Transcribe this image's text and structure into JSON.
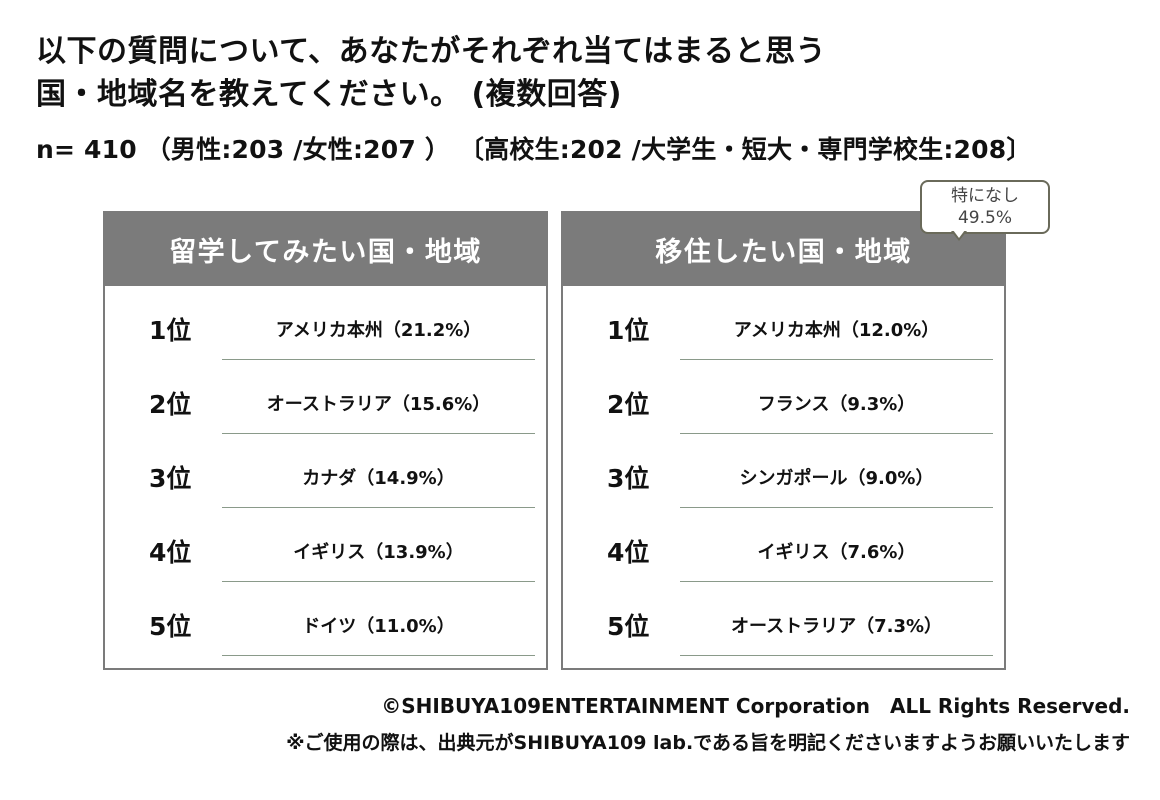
{
  "title_line1": "以下の質問について、あなたがそれぞれ当てはまると思う",
  "title_line2": "国・地域名を教えてください。 (複数回答)",
  "subtitle": "n= 410 （男性:203 /女性:207 ） 〔高校生:202 /大学生・短大・専門学校生:208〕",
  "left_panel": {
    "header": "留学してみたい国・地域",
    "rows": [
      {
        "rank": "1位",
        "item": "アメリカ本州（21.2%）"
      },
      {
        "rank": "2位",
        "item": "オーストラリア（15.6%）"
      },
      {
        "rank": "3位",
        "item": "カナダ（14.9%）"
      },
      {
        "rank": "4位",
        "item": "イギリス（13.9%）"
      },
      {
        "rank": "5位",
        "item": "ドイツ（11.0%）"
      }
    ]
  },
  "right_panel": {
    "header": "移住したい国・地域",
    "rows": [
      {
        "rank": "1位",
        "item": "アメリカ本州（12.0%）"
      },
      {
        "rank": "2位",
        "item": "フランス（9.3%）"
      },
      {
        "rank": "3位",
        "item": "シンガポール（9.0%）"
      },
      {
        "rank": "4位",
        "item": "イギリス（7.6%）"
      },
      {
        "rank": "5位",
        "item": "オーストラリア（7.3%）"
      }
    ]
  },
  "callout": {
    "line1": "特になし",
    "line2": "49.5%"
  },
  "footer": {
    "copyright": "©SHIBUYA109ENTERTAINMENT Corporation　ALL Rights Reserved.",
    "notice": "※ご使用の際は、出典元がSHIBUYA109 lab.である旨を明記くださいますようお願いいたします"
  }
}
